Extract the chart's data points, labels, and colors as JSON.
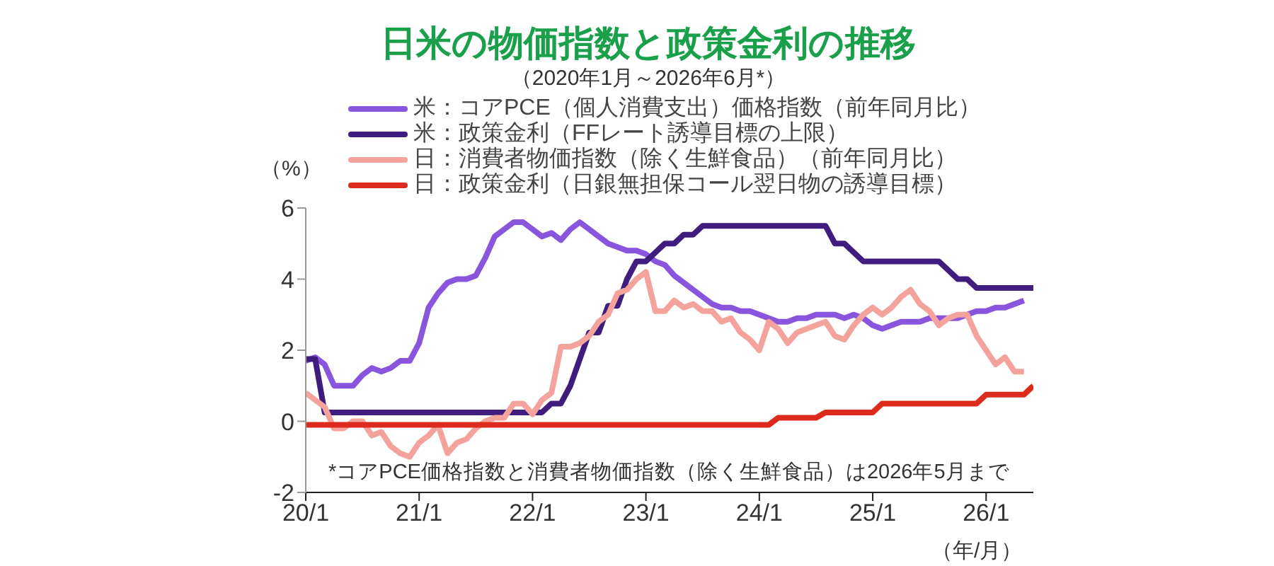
{
  "chart_data": {
    "type": "line",
    "title": "日米の物価指数と政策金利の推移",
    "subtitle": "（2020年1月～2026年6月*）",
    "ylabel": "（%）",
    "xlabel": "（年/月）",
    "annotations": [
      "*コアPCE価格指数と消費者物価指数（除く生鮮食品）は2026年5月まで"
    ],
    "xlim": [
      "2020-01",
      "2026-06"
    ],
    "xticks": [
      {
        "value": "2020-01",
        "label": "20/1"
      },
      {
        "value": "2021-01",
        "label": "21/1"
      },
      {
        "value": "2022-01",
        "label": "22/1"
      },
      {
        "value": "2023-01",
        "label": "23/1"
      },
      {
        "value": "2024-01",
        "label": "24/1"
      },
      {
        "value": "2025-01",
        "label": "25/1"
      },
      {
        "value": "2026-01",
        "label": "26/1"
      }
    ],
    "ylim": [
      -2,
      6
    ],
    "yticks": [
      -2,
      0,
      2,
      4,
      6
    ],
    "legend": "top",
    "marker": "none",
    "line_style": "solid",
    "series": [
      {
        "name": "米：コアPCE（個人消費支出）価格指数（前年同月比）",
        "color": "#8a55dd",
        "x": [
          "2020-01",
          "2020-02",
          "2020-03",
          "2020-04",
          "2020-05",
          "2020-06",
          "2020-07",
          "2020-08",
          "2020-09",
          "2020-10",
          "2020-11",
          "2020-12",
          "2021-01",
          "2021-02",
          "2021-03",
          "2021-04",
          "2021-05",
          "2021-06",
          "2021-07",
          "2021-08",
          "2021-09",
          "2021-10",
          "2021-11",
          "2021-12",
          "2022-01",
          "2022-02",
          "2022-03",
          "2022-04",
          "2022-05",
          "2022-06",
          "2022-07",
          "2022-08",
          "2022-09",
          "2022-10",
          "2022-11",
          "2022-12",
          "2023-01",
          "2023-02",
          "2023-03",
          "2023-04",
          "2023-05",
          "2023-06",
          "2023-07",
          "2023-08",
          "2023-09",
          "2023-10",
          "2023-11",
          "2023-12",
          "2024-01",
          "2024-02",
          "2024-03",
          "2024-04",
          "2024-05",
          "2024-06",
          "2024-07",
          "2024-08",
          "2024-09",
          "2024-10",
          "2024-11",
          "2024-12",
          "2025-01",
          "2025-02",
          "2025-03",
          "2025-04",
          "2025-05",
          "2025-06",
          "2025-07",
          "2025-08",
          "2025-09",
          "2025-10",
          "2025-11",
          "2025-12",
          "2026-01",
          "2026-02",
          "2026-03",
          "2026-04",
          "2026-05"
        ],
        "values": [
          1.7,
          1.8,
          1.6,
          1.0,
          1.0,
          1.0,
          1.3,
          1.5,
          1.4,
          1.5,
          1.7,
          1.7,
          2.2,
          3.2,
          3.6,
          3.9,
          4.0,
          4.0,
          4.1,
          4.6,
          5.2,
          5.4,
          5.6,
          5.6,
          5.4,
          5.2,
          5.3,
          5.1,
          5.4,
          5.6,
          5.4,
          5.2,
          5.0,
          4.9,
          4.8,
          4.8,
          4.7,
          4.5,
          4.4,
          4.1,
          3.9,
          3.7,
          3.5,
          3.3,
          3.2,
          3.2,
          3.1,
          3.1,
          3.0,
          2.9,
          2.8,
          2.8,
          2.9,
          2.9,
          3.0,
          3.0,
          3.0,
          2.9,
          3.0,
          2.9,
          2.7,
          2.6,
          2.7,
          2.8,
          2.8,
          2.8,
          2.9,
          2.9,
          2.9,
          2.9,
          3.0,
          3.1,
          3.1,
          3.2,
          3.2,
          3.3,
          3.4
        ]
      },
      {
        "name": "米：政策金利（FFレート誘導目標の上限）",
        "color": "#3f1d7e",
        "x": [
          "2020-01",
          "2020-02",
          "2020-03",
          "2022-02",
          "2022-03",
          "2022-04",
          "2022-05",
          "2022-06",
          "2022-07",
          "2022-08",
          "2022-09",
          "2022-10",
          "2022-11",
          "2022-12",
          "2023-01",
          "2023-02",
          "2023-03",
          "2023-04",
          "2023-05",
          "2023-06",
          "2023-07",
          "2024-08",
          "2024-09",
          "2024-10",
          "2024-11",
          "2024-12",
          "2025-08",
          "2025-09",
          "2025-10",
          "2025-11",
          "2025-12",
          "2026-06"
        ],
        "values": [
          1.75,
          1.75,
          0.25,
          0.25,
          0.5,
          0.5,
          1.0,
          1.75,
          2.5,
          2.5,
          3.25,
          3.25,
          4.0,
          4.5,
          4.5,
          4.75,
          5.0,
          5.0,
          5.25,
          5.25,
          5.5,
          5.5,
          5.0,
          5.0,
          4.75,
          4.5,
          4.5,
          4.25,
          4.0,
          4.0,
          3.75,
          3.75
        ]
      },
      {
        "name": "日：消費者物価指数（除く生鮮食品）（前年同月比）",
        "color": "#f3a29c",
        "x": [
          "2020-01",
          "2020-02",
          "2020-03",
          "2020-04",
          "2020-05",
          "2020-06",
          "2020-07",
          "2020-08",
          "2020-09",
          "2020-10",
          "2020-11",
          "2020-12",
          "2021-01",
          "2021-02",
          "2021-03",
          "2021-04",
          "2021-05",
          "2021-06",
          "2021-07",
          "2021-08",
          "2021-09",
          "2021-10",
          "2021-11",
          "2021-12",
          "2022-01",
          "2022-02",
          "2022-03",
          "2022-04",
          "2022-05",
          "2022-06",
          "2022-07",
          "2022-08",
          "2022-09",
          "2022-10",
          "2022-11",
          "2022-12",
          "2023-01",
          "2023-02",
          "2023-03",
          "2023-04",
          "2023-05",
          "2023-06",
          "2023-07",
          "2023-08",
          "2023-09",
          "2023-10",
          "2023-11",
          "2023-12",
          "2024-01",
          "2024-02",
          "2024-03",
          "2024-04",
          "2024-05",
          "2024-06",
          "2024-07",
          "2024-08",
          "2024-09",
          "2024-10",
          "2024-11",
          "2024-12",
          "2025-01",
          "2025-02",
          "2025-03",
          "2025-04",
          "2025-05",
          "2025-06",
          "2025-07",
          "2025-08",
          "2025-09",
          "2025-10",
          "2025-11",
          "2025-12",
          "2026-01",
          "2026-02",
          "2026-03",
          "2026-04",
          "2026-05"
        ],
        "values": [
          0.8,
          0.6,
          0.4,
          -0.2,
          -0.2,
          0.0,
          0.0,
          -0.4,
          -0.3,
          -0.7,
          -0.9,
          -1.0,
          -0.6,
          -0.4,
          -0.1,
          -0.9,
          -0.6,
          -0.5,
          -0.2,
          0.0,
          0.1,
          0.1,
          0.5,
          0.5,
          0.2,
          0.6,
          0.8,
          2.1,
          2.1,
          2.2,
          2.4,
          2.8,
          3.0,
          3.6,
          3.7,
          4.0,
          4.2,
          3.1,
          3.1,
          3.4,
          3.2,
          3.3,
          3.1,
          3.1,
          2.8,
          2.9,
          2.5,
          2.3,
          2.0,
          2.8,
          2.6,
          2.2,
          2.5,
          2.6,
          2.7,
          2.8,
          2.4,
          2.3,
          2.7,
          3.0,
          3.2,
          3.0,
          3.2,
          3.5,
          3.7,
          3.3,
          3.1,
          2.7,
          2.9,
          3.0,
          3.0,
          2.4,
          2.0,
          1.6,
          1.8,
          1.4,
          1.4
        ]
      },
      {
        "name": "日：政策金利（日銀無担保コール翌日物の誘導目標）",
        "color": "#dc2b1c",
        "x": [
          "2020-01",
          "2024-02",
          "2024-03",
          "2024-07",
          "2024-08",
          "2025-01",
          "2025-02",
          "2025-12",
          "2026-01",
          "2026-05",
          "2026-06"
        ],
        "values": [
          -0.1,
          -0.1,
          0.1,
          0.1,
          0.25,
          0.25,
          0.5,
          0.5,
          0.75,
          0.75,
          1.0
        ]
      }
    ]
  }
}
